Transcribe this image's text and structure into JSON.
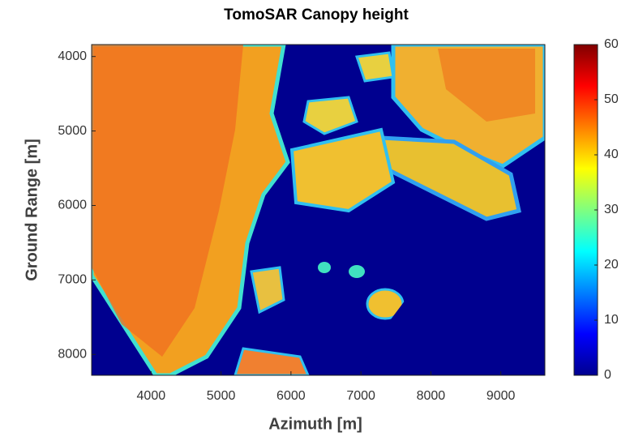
{
  "chart_data": {
    "type": "heatmap",
    "title": "TomoSAR Canopy height",
    "xlabel": "Azimuth [m]",
    "ylabel": "Ground Range [m]",
    "xlim": [
      3150,
      9630
    ],
    "xticks": [
      4000,
      5000,
      6000,
      7000,
      8000,
      9000
    ],
    "ylim": [
      3840,
      8280
    ],
    "yticks": [
      4000,
      5000,
      6000,
      7000,
      8000
    ],
    "y_reversed": true,
    "colormap": "jet",
    "clim": [
      0,
      60
    ],
    "cticks": [
      0,
      10,
      20,
      30,
      40,
      50,
      60
    ]
  }
}
